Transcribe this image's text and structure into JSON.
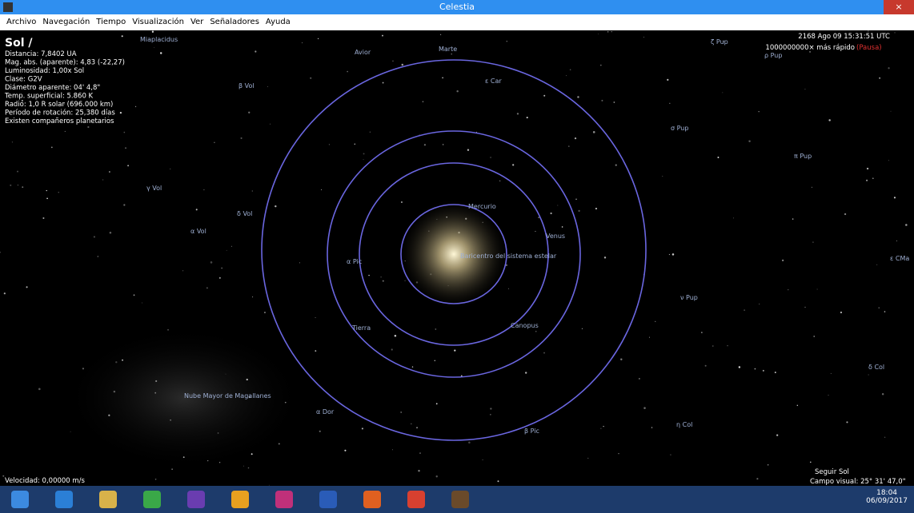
{
  "window": {
    "title": "Celestia"
  },
  "menu": [
    "Archivo",
    "Navegación",
    "Tiempo",
    "Visualización",
    "Ver",
    "Señaladores",
    "Ayuda"
  ],
  "info": {
    "name": "Sol /",
    "lines": [
      "Distancia: 7,8402 UA",
      "Mag. abs. (aparente): 4,83 (-22,27)",
      "Luminosidad: 1,00x Sol",
      "Clase: G2V",
      "Diámetro aparente: 04' 4,8\"",
      "Temp. superficial: 5.860 K",
      "Radio: 1,0 R solar (696.000 km)",
      "Período de rotación: 25,380 días",
      "Existen compañeros planetarios"
    ]
  },
  "time": {
    "date": "2168 Ago 09 15:31:51 UTC",
    "speed": "1000000000× más rápido",
    "status": "(Pausa)"
  },
  "labels": [
    "Miaplacidus",
    "Avior",
    "Marte",
    "ε Car",
    "ζ Pup",
    "ρ Pup",
    "β Vol",
    "γ Vol",
    "δ Vol",
    "α Vol",
    "Mercurio",
    "Venus",
    "Baricentro del sistema estelar",
    "α Pic",
    "Tierra",
    "Canopus",
    "σ Pup",
    "π Pup",
    "ε CMa",
    "ν Pup",
    "δ Col",
    "Nube Mayor de Magallanes",
    "α Dor",
    "β Pic",
    "η Col"
  ],
  "status": {
    "velocity": "Velocidad: 0,00000 m/s",
    "tracking": "Seguir Sol",
    "fov": "Campo visual: 25° 31' 47,0\""
  },
  "taskbar": {
    "time": "18:04",
    "date": "06/09/2017"
  }
}
